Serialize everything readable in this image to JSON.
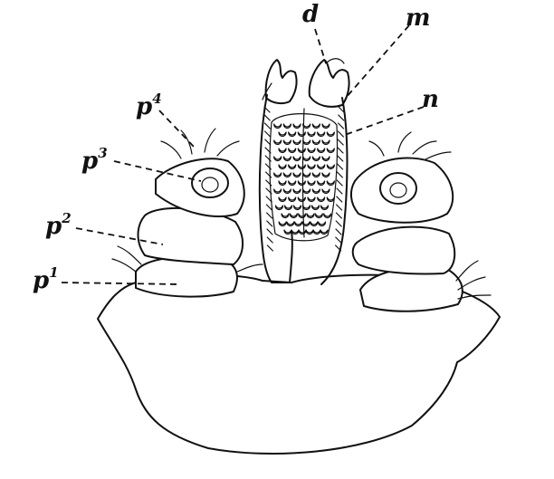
{
  "figure": {
    "labels": {
      "d": "d",
      "m": "m",
      "n": "n",
      "p4": {
        "base": "p",
        "sup": "4"
      },
      "p3": {
        "base": "p",
        "sup": "3"
      },
      "p2": {
        "base": "p",
        "sup": "2"
      },
      "p1": {
        "base": "p",
        "sup": "1"
      }
    }
  }
}
